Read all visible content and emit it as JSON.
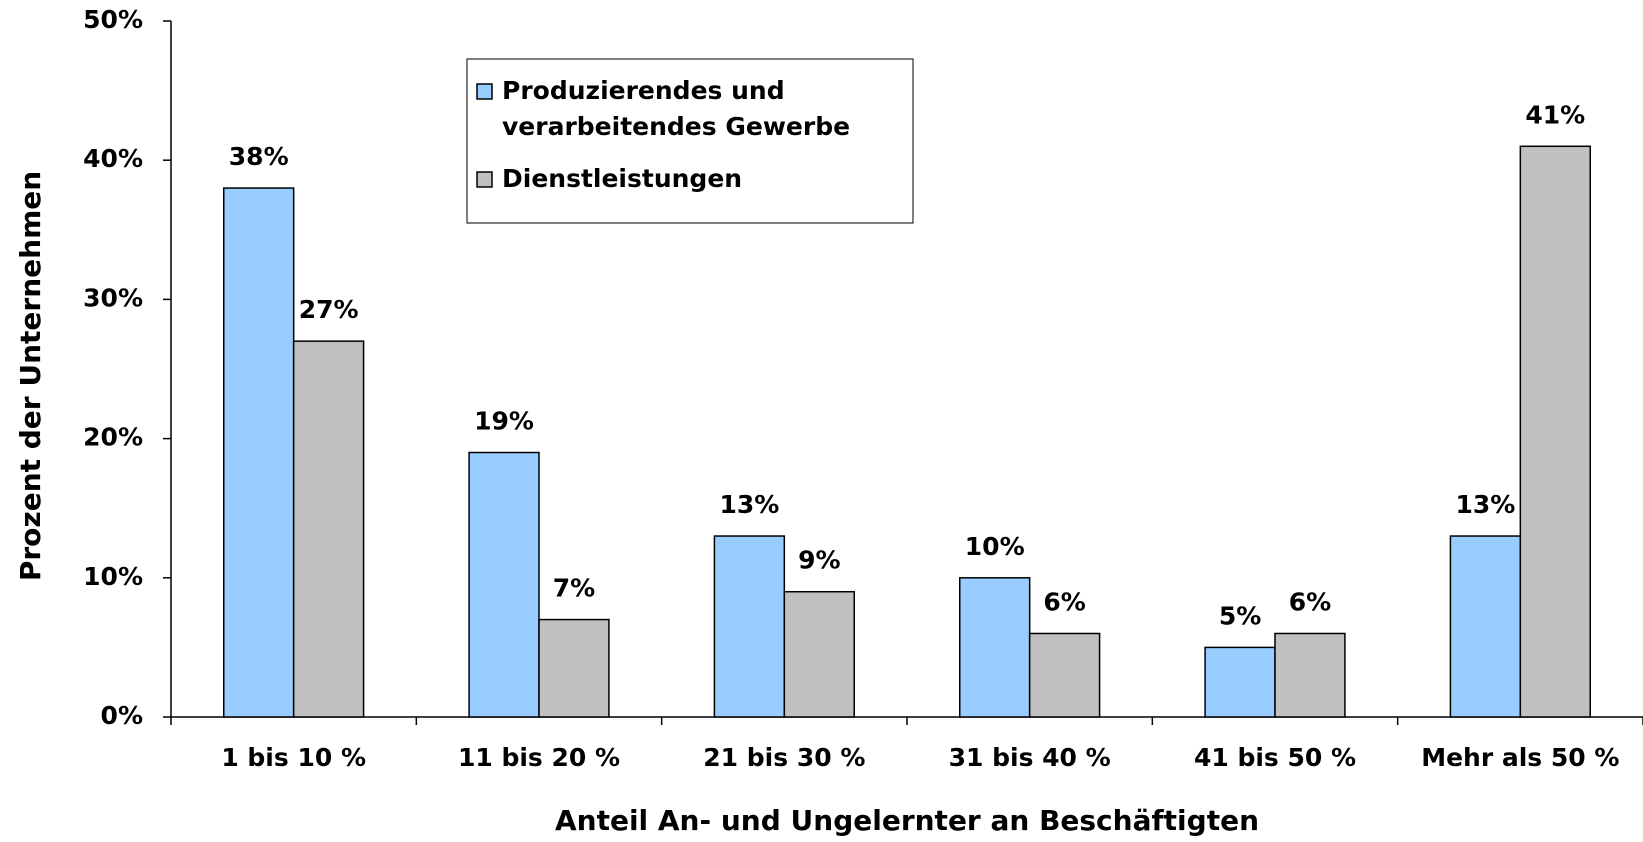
{
  "chart_data": {
    "type": "bar",
    "x_label": "Anteil An- und Ungelernter an Beschäftigten",
    "y_label": "Prozent der Unternehmen",
    "categories": [
      "1 bis 10 %",
      "11 bis 20 %",
      "21 bis 30 %",
      "31 bis 40 %",
      "41 bis 50 %",
      "Mehr als 50 %"
    ],
    "series": [
      {
        "name": "Produzierendes und verarbeitendes Gewerbe",
        "color": "#99ccff",
        "values": [
          38,
          19,
          13,
          10,
          5,
          13
        ],
        "value_labels": [
          "38%",
          "19%",
          "13%",
          "10%",
          "5%",
          "13%"
        ]
      },
      {
        "name": "Dienstleistungen",
        "color": "#c0c0c0",
        "values": [
          27,
          7,
          9,
          6,
          6,
          41
        ],
        "value_labels": [
          "27%",
          "7%",
          "9%",
          "6%",
          "6%",
          "41%"
        ]
      }
    ],
    "ylim": [
      0,
      50
    ],
    "yticks": [
      {
        "value": 0,
        "label": "0%"
      },
      {
        "value": 10,
        "label": "10%"
      },
      {
        "value": 20,
        "label": "20%"
      },
      {
        "value": 30,
        "label": "30%"
      },
      {
        "value": 40,
        "label": "40%"
      },
      {
        "value": 50,
        "label": "50%"
      }
    ],
    "legend": "top-center"
  }
}
